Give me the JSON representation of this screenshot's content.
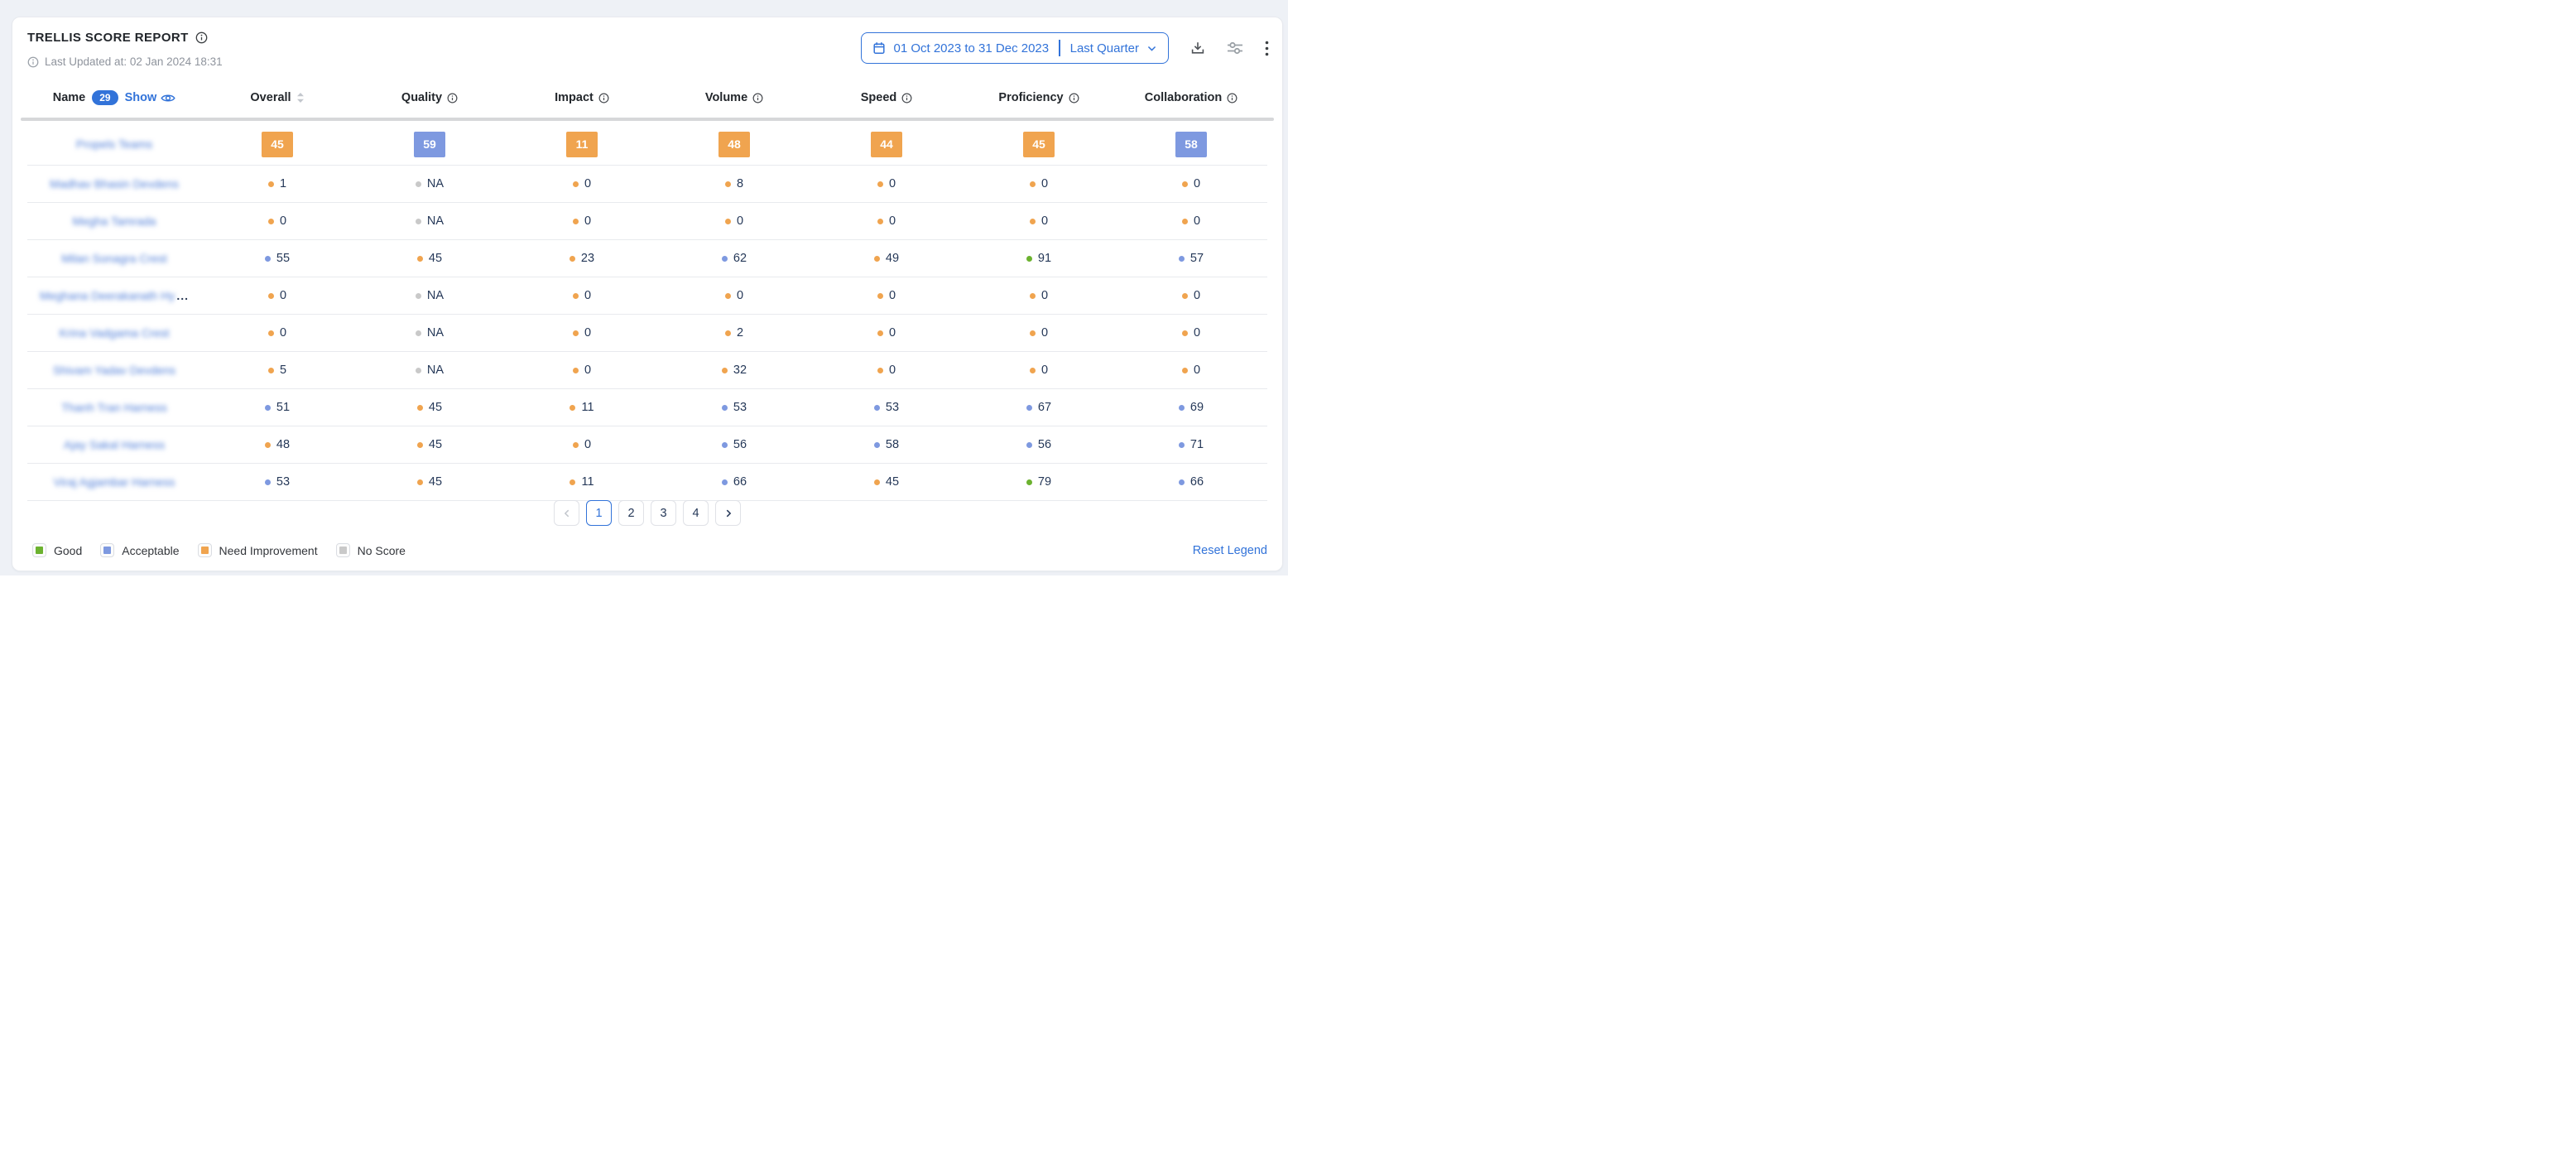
{
  "colors": {
    "good": "#6cb22f",
    "acceptable": "#7e99e0",
    "need_improvement": "#f0a44f",
    "no_score": "#c9c9c9",
    "accent_blue": "#3273d9",
    "score_text": "#253858"
  },
  "report": {
    "title": "TRELLIS SCORE REPORT",
    "last_updated": "Last Updated at: 02 Jan 2024 18:31"
  },
  "controls": {
    "date_range": "01 Oct 2023 to 31 Dec 2023",
    "preset": "Last Quarter",
    "icons": [
      "calendar-icon",
      "chevron-down-icon",
      "download-icon",
      "sliders-icon",
      "kebab-menu-icon"
    ]
  },
  "table": {
    "name_header": {
      "label": "Name",
      "count": "29",
      "show_label": "Show",
      "icon": "eye-icon"
    },
    "columns": [
      {
        "label": "Overall",
        "icon": "sort"
      },
      {
        "label": "Quality",
        "icon": "info"
      },
      {
        "label": "Impact",
        "icon": "info"
      },
      {
        "label": "Volume",
        "icon": "info"
      },
      {
        "label": "Speed",
        "icon": "info"
      },
      {
        "label": "Proficiency",
        "icon": "info"
      },
      {
        "label": "Collaboration",
        "icon": "info"
      }
    ],
    "summary_row": {
      "name": "Propels Teams",
      "badges": [
        {
          "value": "45",
          "level": "need_improvement"
        },
        {
          "value": "59",
          "level": "acceptable"
        },
        {
          "value": "11",
          "level": "need_improvement"
        },
        {
          "value": "48",
          "level": "need_improvement"
        },
        {
          "value": "44",
          "level": "need_improvement"
        },
        {
          "value": "45",
          "level": "need_improvement"
        },
        {
          "value": "58",
          "level": "acceptable"
        }
      ]
    },
    "rows": [
      {
        "name": "Madhav Bhasin Devdens",
        "truncated": false,
        "scores": [
          {
            "value": "1",
            "level": "need_improvement"
          },
          {
            "value": "NA",
            "level": "no_score"
          },
          {
            "value": "0",
            "level": "need_improvement"
          },
          {
            "value": "8",
            "level": "need_improvement"
          },
          {
            "value": "0",
            "level": "need_improvement"
          },
          {
            "value": "0",
            "level": "need_improvement"
          },
          {
            "value": "0",
            "level": "need_improvement"
          }
        ]
      },
      {
        "name": "Megha Tamrada",
        "truncated": false,
        "scores": [
          {
            "value": "0",
            "level": "need_improvement"
          },
          {
            "value": "NA",
            "level": "no_score"
          },
          {
            "value": "0",
            "level": "need_improvement"
          },
          {
            "value": "0",
            "level": "need_improvement"
          },
          {
            "value": "0",
            "level": "need_improvement"
          },
          {
            "value": "0",
            "level": "need_improvement"
          },
          {
            "value": "0",
            "level": "need_improvement"
          }
        ]
      },
      {
        "name": "Milan Sonagra Crest",
        "truncated": false,
        "scores": [
          {
            "value": "55",
            "level": "acceptable"
          },
          {
            "value": "45",
            "level": "need_improvement"
          },
          {
            "value": "23",
            "level": "need_improvement"
          },
          {
            "value": "62",
            "level": "acceptable"
          },
          {
            "value": "49",
            "level": "need_improvement"
          },
          {
            "value": "91",
            "level": "good"
          },
          {
            "value": "57",
            "level": "acceptable"
          }
        ]
      },
      {
        "name": "Meghana Deerakanath Hy",
        "truncated": true,
        "scores": [
          {
            "value": "0",
            "level": "need_improvement"
          },
          {
            "value": "NA",
            "level": "no_score"
          },
          {
            "value": "0",
            "level": "need_improvement"
          },
          {
            "value": "0",
            "level": "need_improvement"
          },
          {
            "value": "0",
            "level": "need_improvement"
          },
          {
            "value": "0",
            "level": "need_improvement"
          },
          {
            "value": "0",
            "level": "need_improvement"
          }
        ]
      },
      {
        "name": "Krina Vadgama Crest",
        "truncated": false,
        "scores": [
          {
            "value": "0",
            "level": "need_improvement"
          },
          {
            "value": "NA",
            "level": "no_score"
          },
          {
            "value": "0",
            "level": "need_improvement"
          },
          {
            "value": "2",
            "level": "need_improvement"
          },
          {
            "value": "0",
            "level": "need_improvement"
          },
          {
            "value": "0",
            "level": "need_improvement"
          },
          {
            "value": "0",
            "level": "need_improvement"
          }
        ]
      },
      {
        "name": "Shivam Yadav Devdens",
        "truncated": false,
        "scores": [
          {
            "value": "5",
            "level": "need_improvement"
          },
          {
            "value": "NA",
            "level": "no_score"
          },
          {
            "value": "0",
            "level": "need_improvement"
          },
          {
            "value": "32",
            "level": "need_improvement"
          },
          {
            "value": "0",
            "level": "need_improvement"
          },
          {
            "value": "0",
            "level": "need_improvement"
          },
          {
            "value": "0",
            "level": "need_improvement"
          }
        ]
      },
      {
        "name": "Thanh Tran Harness",
        "truncated": false,
        "scores": [
          {
            "value": "51",
            "level": "acceptable"
          },
          {
            "value": "45",
            "level": "need_improvement"
          },
          {
            "value": "11",
            "level": "need_improvement"
          },
          {
            "value": "53",
            "level": "acceptable"
          },
          {
            "value": "53",
            "level": "acceptable"
          },
          {
            "value": "67",
            "level": "acceptable"
          },
          {
            "value": "69",
            "level": "acceptable"
          }
        ]
      },
      {
        "name": "Ajay Sakal Harness",
        "truncated": false,
        "scores": [
          {
            "value": "48",
            "level": "need_improvement"
          },
          {
            "value": "45",
            "level": "need_improvement"
          },
          {
            "value": "0",
            "level": "need_improvement"
          },
          {
            "value": "56",
            "level": "acceptable"
          },
          {
            "value": "58",
            "level": "acceptable"
          },
          {
            "value": "56",
            "level": "acceptable"
          },
          {
            "value": "71",
            "level": "acceptable"
          }
        ]
      },
      {
        "name": "Viraj Agjambar Harness",
        "truncated": false,
        "scores": [
          {
            "value": "53",
            "level": "acceptable"
          },
          {
            "value": "45",
            "level": "need_improvement"
          },
          {
            "value": "11",
            "level": "need_improvement"
          },
          {
            "value": "66",
            "level": "acceptable"
          },
          {
            "value": "45",
            "level": "need_improvement"
          },
          {
            "value": "79",
            "level": "good"
          },
          {
            "value": "66",
            "level": "acceptable"
          }
        ]
      }
    ]
  },
  "pagination": {
    "pages": [
      "1",
      "2",
      "3",
      "4"
    ],
    "active": "1"
  },
  "legend": {
    "items": [
      {
        "label": "Good",
        "level": "good"
      },
      {
        "label": "Acceptable",
        "level": "acceptable"
      },
      {
        "label": "Need Improvement",
        "level": "need_improvement"
      },
      {
        "label": "No Score",
        "level": "no_score"
      }
    ],
    "reset_label": "Reset Legend"
  }
}
